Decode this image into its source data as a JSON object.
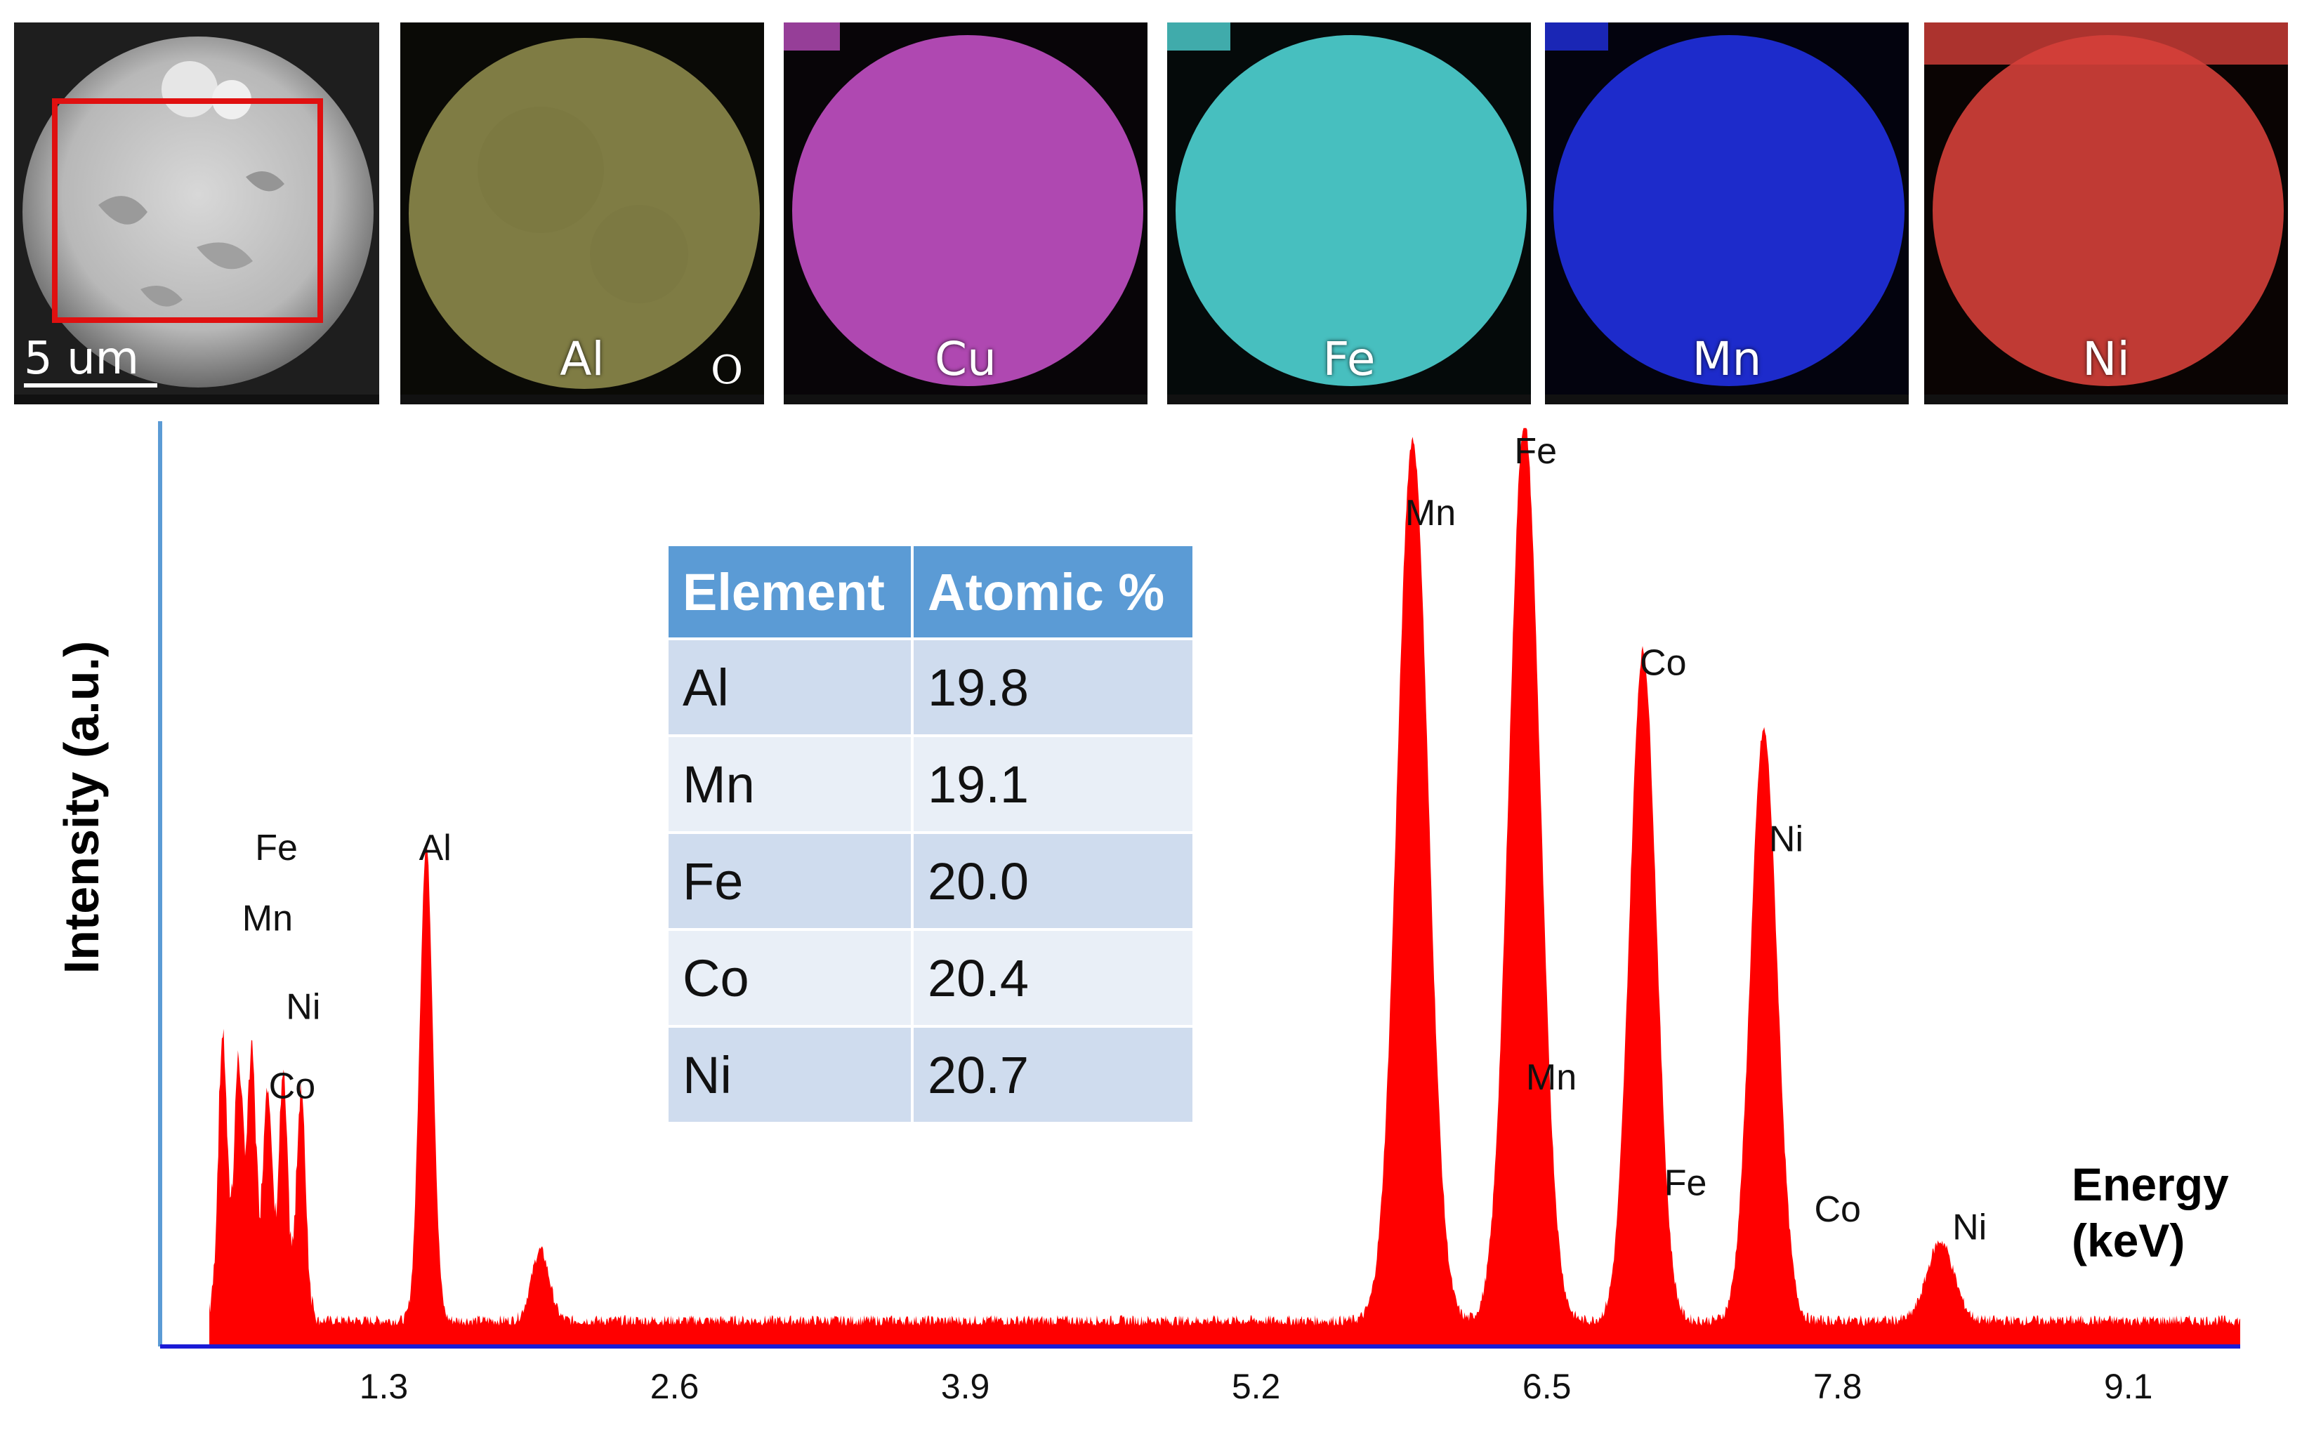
{
  "sem_panel": {
    "scale_bar_label": "5 um"
  },
  "eds_maps": [
    {
      "element": "Al",
      "color": "#c8c46a",
      "extra_label": "O"
    },
    {
      "element": "Cu",
      "color": "#c652c8",
      "extra_label": ""
    },
    {
      "element": "Fe",
      "color": "#4fd3d3",
      "extra_label": ""
    },
    {
      "element": "Mn",
      "color": "#2030e0",
      "extra_label": ""
    },
    {
      "element": "Ni",
      "color": "#d4403a",
      "extra_label": ""
    }
  ],
  "composition_table": {
    "headers": [
      "Element",
      "Atomic %"
    ],
    "rows": [
      [
        "Al",
        "19.8"
      ],
      [
        "Mn",
        "19.1"
      ],
      [
        "Fe",
        "20.0"
      ],
      [
        "Co",
        "20.4"
      ],
      [
        "Ni",
        "20.7"
      ]
    ]
  },
  "colors": {
    "spectrum_fill": "#ff0000",
    "axis_y": "#5b9bd5",
    "axis_x": "#1a1ad6",
    "sem_roi_box": "#e01010"
  },
  "chart_data": {
    "type": "area",
    "title": "",
    "xlabel": "Energy (keV)",
    "xlabel_lines": [
      "Energy",
      "(keV)"
    ],
    "ylabel": "Intensity (a.u.)",
    "xlim": [
      0.3,
      9.6
    ],
    "ylim": [
      0,
      1
    ],
    "x_ticks": [
      1.3,
      2.6,
      3.9,
      5.2,
      6.5,
      7.8,
      9.1
    ],
    "x_tick_labels": [
      "1.3",
      "2.6",
      "3.9",
      "5.2",
      "6.5",
      "7.8",
      "9.1"
    ],
    "grid": false,
    "series": [
      {
        "values_description": "EDS spectrum peaks (approximate heights, normalized)",
        "peaks": [
          {
            "x": 0.58,
            "y": 0.31,
            "width": 0.02
          },
          {
            "x": 0.65,
            "y": 0.28,
            "width": 0.02
          },
          {
            "x": 0.71,
            "y": 0.29,
            "width": 0.02
          },
          {
            "x": 0.78,
            "y": 0.26,
            "width": 0.02
          },
          {
            "x": 0.85,
            "y": 0.26,
            "width": 0.02
          },
          {
            "x": 0.93,
            "y": 0.25,
            "width": 0.02
          },
          {
            "x": 1.49,
            "y": 0.54,
            "width": 0.03
          },
          {
            "x": 2.0,
            "y": 0.08,
            "width": 0.04
          },
          {
            "x": 5.9,
            "y": 1.0,
            "width": 0.07
          },
          {
            "x": 6.4,
            "y": 1.02,
            "width": 0.07
          },
          {
            "x": 6.93,
            "y": 0.76,
            "width": 0.06
          },
          {
            "x": 7.47,
            "y": 0.67,
            "width": 0.06
          },
          {
            "x": 8.26,
            "y": 0.09,
            "width": 0.06
          }
        ]
      }
    ],
    "peak_labels": [
      {
        "text": "Fe",
        "x": 0.82,
        "y": 0.55
      },
      {
        "text": "Mn",
        "x": 0.78,
        "y": 0.47
      },
      {
        "text": "Ni",
        "x": 0.94,
        "y": 0.37
      },
      {
        "text": "Co",
        "x": 0.89,
        "y": 0.28
      },
      {
        "text": "Al",
        "x": 1.53,
        "y": 0.55
      },
      {
        "text": "Mn",
        "x": 5.98,
        "y": 0.93
      },
      {
        "text": "Fe",
        "x": 6.45,
        "y": 1.0
      },
      {
        "text": "Co",
        "x": 7.02,
        "y": 0.76
      },
      {
        "text": "Ni",
        "x": 7.57,
        "y": 0.56
      },
      {
        "text": "Mn",
        "x": 6.52,
        "y": 0.29
      },
      {
        "text": "Fe",
        "x": 7.12,
        "y": 0.17
      },
      {
        "text": "Co",
        "x": 7.8,
        "y": 0.14
      },
      {
        "text": "Ni",
        "x": 8.39,
        "y": 0.12
      }
    ]
  }
}
